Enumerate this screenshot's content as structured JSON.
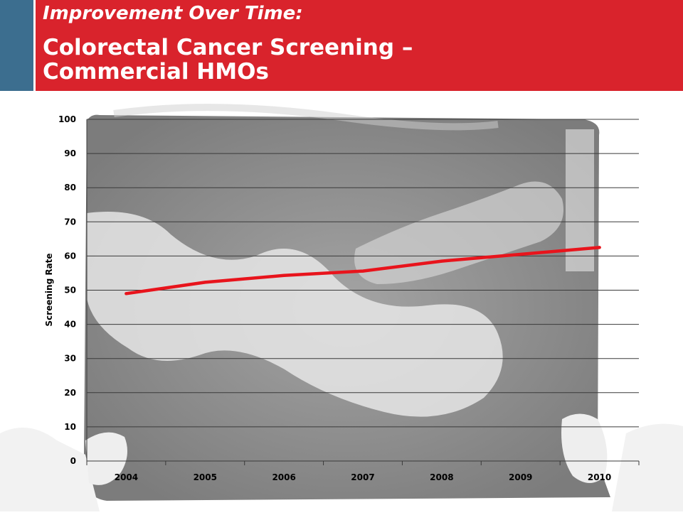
{
  "header": {
    "kicker": "Improvement Over Time:",
    "title_line1": "Colorectal Cancer Screening –",
    "title_line2": "Commercial HMOs"
  },
  "colors": {
    "header_red": "#d9232c",
    "accent_blue": "#3c6e8f",
    "line_red": "#e8141c"
  },
  "chart_data": {
    "type": "line",
    "x": [
      "2004",
      "2005",
      "2006",
      "2007",
      "2008",
      "2009",
      "2010"
    ],
    "series": [
      {
        "values": [
          49,
          52.3,
          54.3,
          55.6,
          58.5,
          60.5,
          62.5
        ]
      }
    ],
    "xlabel": "",
    "ylabel": "Screening Rate",
    "ylim": [
      0,
      100
    ],
    "yticks": [
      "0",
      "10",
      "20",
      "30",
      "40",
      "50",
      "60",
      "70",
      "80",
      "90",
      "100"
    ],
    "grid": true,
    "background": "x-ray image of colon held by hands"
  }
}
